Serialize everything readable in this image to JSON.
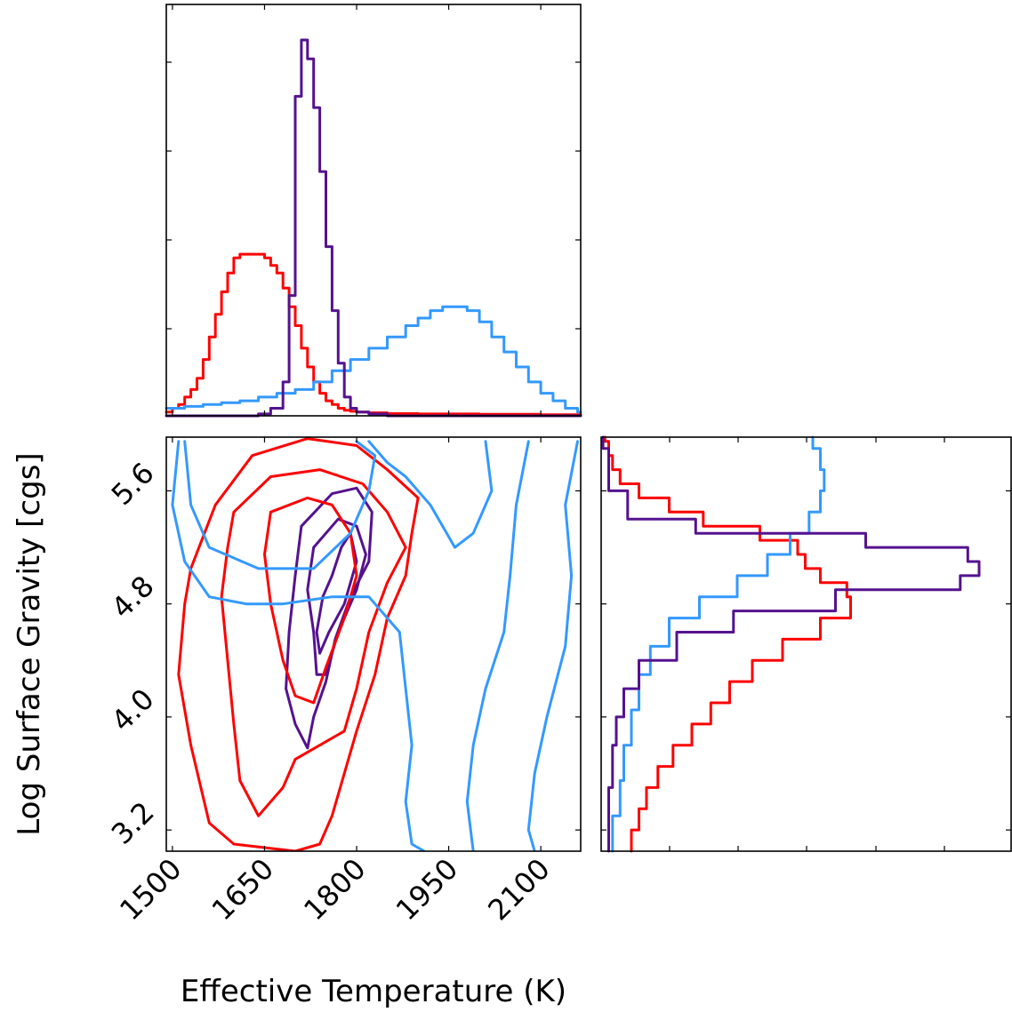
{
  "chart_data": {
    "type": "corner",
    "xlabel": "Effective Temperature (K)",
    "ylabel": "Log Surface Gravity [cgs]",
    "xlim": [
      1490,
      2165
    ],
    "ylim": [
      3.05,
      5.98
    ],
    "xticks": [
      "1500",
      "1650",
      "1800",
      "1950",
      "2100"
    ],
    "xtick_values": [
      1500,
      1650,
      1800,
      1950,
      2100
    ],
    "yticks": [
      "3.2",
      "4.0",
      "4.8",
      "5.6"
    ],
    "ytick_values": [
      3.2,
      4.0,
      4.8,
      5.6
    ],
    "colors": {
      "red": "#ff0000",
      "blue": "#3399ff",
      "purple": "#55128f"
    },
    "series": [
      {
        "color": "red",
        "teff_hist": {
          "x": [
            1490,
            1500,
            1510,
            1520,
            1530,
            1540,
            1550,
            1560,
            1570,
            1580,
            1590,
            1600,
            1610,
            1620,
            1630,
            1640,
            1650,
            1660,
            1670,
            1680,
            1690,
            1700,
            1710,
            1720,
            1730,
            1740,
            1750,
            1760,
            1770,
            1780,
            1790,
            1800,
            1820,
            1850,
            1900,
            1950,
            2000,
            2050,
            2100,
            2150
          ],
          "v": [
            0.01,
            0.02,
            0.03,
            0.05,
            0.07,
            0.1,
            0.15,
            0.21,
            0.27,
            0.33,
            0.38,
            0.42,
            0.43,
            0.43,
            0.43,
            0.43,
            0.42,
            0.4,
            0.38,
            0.34,
            0.29,
            0.24,
            0.18,
            0.13,
            0.09,
            0.06,
            0.04,
            0.03,
            0.02,
            0.015,
            0.012,
            0.01,
            0.008,
            0.006,
            0.005,
            0.005,
            0.004,
            0.004,
            0.003,
            0.003
          ]
        },
        "logg_hist": {
          "y": [
            3.05,
            3.2,
            3.35,
            3.5,
            3.65,
            3.8,
            3.95,
            4.1,
            4.25,
            4.4,
            4.55,
            4.7,
            4.85,
            4.95,
            5.05,
            5.15,
            5.25,
            5.35,
            5.45,
            5.55,
            5.65,
            5.75,
            5.85,
            5.95
          ],
          "v": [
            0.08,
            0.1,
            0.12,
            0.15,
            0.19,
            0.24,
            0.29,
            0.34,
            0.4,
            0.48,
            0.58,
            0.66,
            0.65,
            0.58,
            0.54,
            0.52,
            0.42,
            0.27,
            0.18,
            0.1,
            0.05,
            0.03,
            0.02,
            0.01
          ]
        }
      },
      {
        "color": "blue",
        "teff_hist": {
          "x": [
            1490,
            1520,
            1550,
            1580,
            1610,
            1640,
            1670,
            1700,
            1730,
            1760,
            1790,
            1820,
            1850,
            1880,
            1900,
            1920,
            1940,
            1960,
            1980,
            2000,
            2020,
            2040,
            2060,
            2080,
            2100,
            2120,
            2140,
            2160
          ],
          "v": [
            0.02,
            0.025,
            0.03,
            0.035,
            0.04,
            0.05,
            0.06,
            0.07,
            0.09,
            0.12,
            0.15,
            0.18,
            0.21,
            0.24,
            0.26,
            0.28,
            0.29,
            0.29,
            0.28,
            0.25,
            0.21,
            0.17,
            0.13,
            0.09,
            0.06,
            0.04,
            0.02,
            0.01
          ]
        },
        "logg_hist": {
          "y": [
            3.05,
            3.3,
            3.55,
            3.8,
            4.05,
            4.3,
            4.5,
            4.7,
            4.85,
            5.0,
            5.15,
            5.3,
            5.45,
            5.6,
            5.75,
            5.9
          ],
          "v": [
            0.03,
            0.05,
            0.06,
            0.08,
            0.1,
            0.13,
            0.18,
            0.26,
            0.36,
            0.44,
            0.5,
            0.55,
            0.58,
            0.59,
            0.58,
            0.56
          ]
        }
      },
      {
        "color": "purple",
        "teff_hist": {
          "x": [
            1490,
            1640,
            1660,
            1680,
            1690,
            1700,
            1710,
            1720,
            1730,
            1740,
            1750,
            1760,
            1770,
            1780,
            1790,
            1800,
            1820,
            1850,
            2160
          ],
          "v": [
            0.0,
            0.005,
            0.02,
            0.09,
            0.32,
            0.85,
            1.0,
            0.95,
            0.82,
            0.65,
            0.45,
            0.28,
            0.14,
            0.05,
            0.02,
            0.01,
            0.005,
            0.0,
            0.0
          ]
        },
        "logg_hist": {
          "y": [
            3.05,
            3.5,
            3.8,
            4.0,
            4.2,
            4.4,
            4.6,
            4.75,
            4.9,
            5.0,
            5.1,
            5.2,
            5.3,
            5.4,
            5.6,
            5.9
          ],
          "v": [
            0.02,
            0.03,
            0.04,
            0.06,
            0.1,
            0.2,
            0.35,
            0.62,
            0.95,
            1.0,
            0.97,
            0.7,
            0.25,
            0.07,
            0.02,
            0.005
          ]
        }
      }
    ]
  }
}
